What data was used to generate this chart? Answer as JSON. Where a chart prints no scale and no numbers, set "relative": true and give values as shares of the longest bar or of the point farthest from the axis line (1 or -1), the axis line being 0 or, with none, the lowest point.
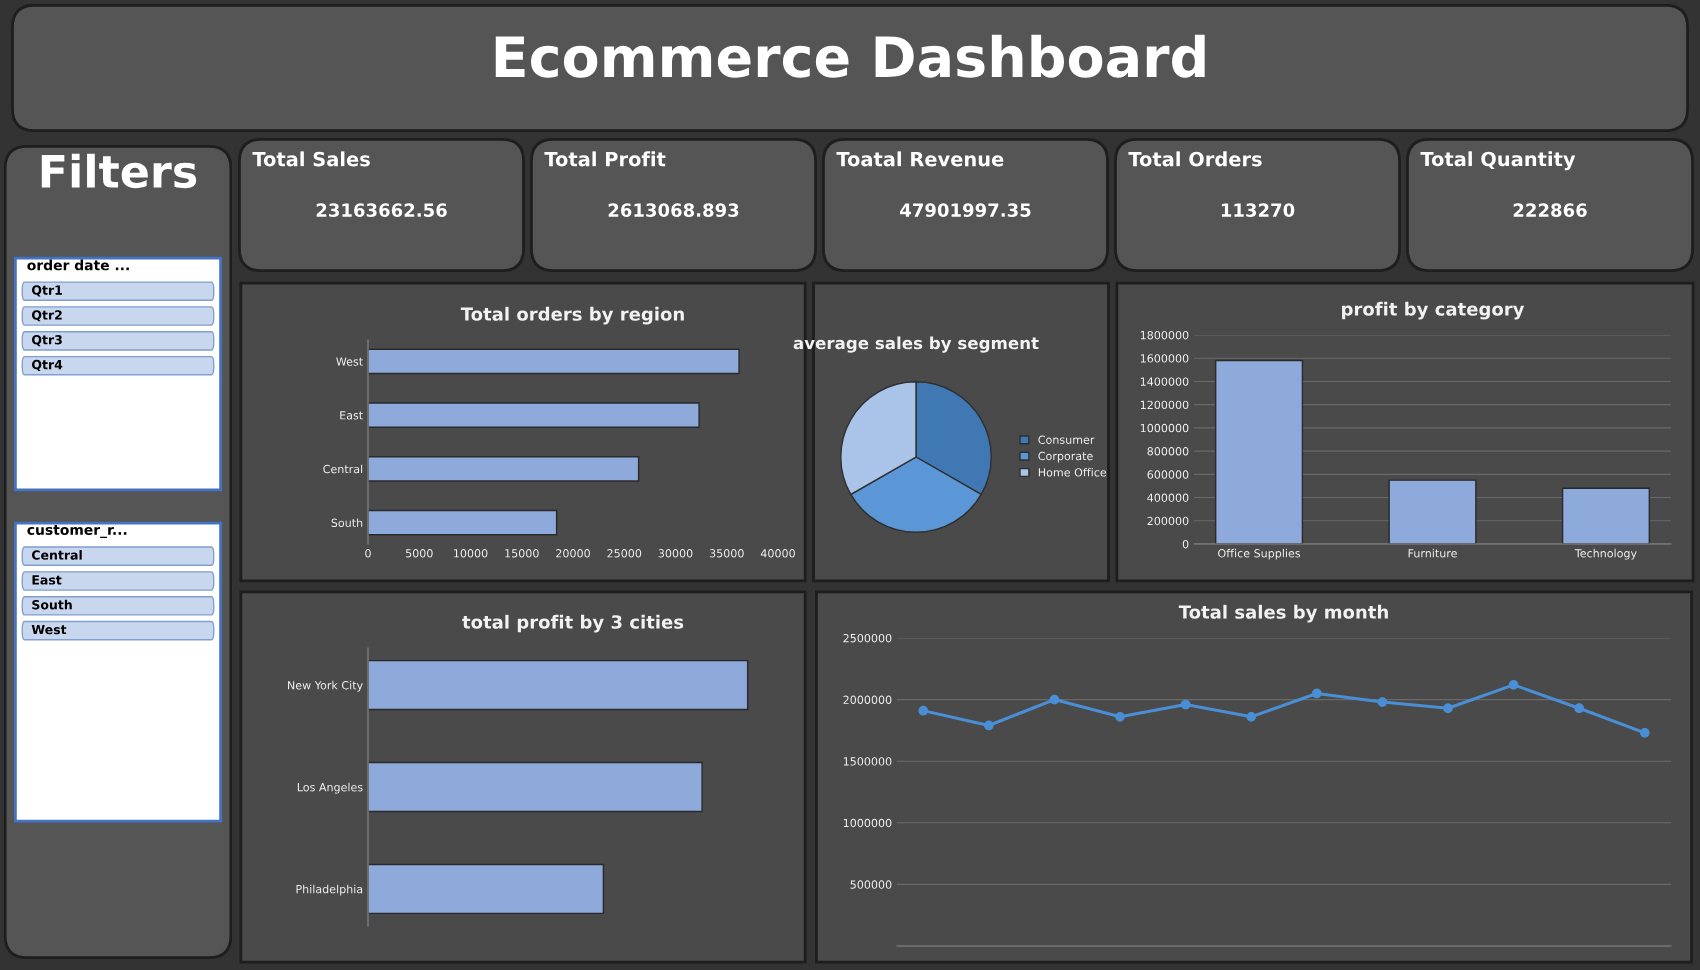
{
  "chart_data": [
    {
      "type": "other",
      "title": "Ecommerce Dashboard"
    },
    {
      "type": "other",
      "title": "Filters",
      "annotations": [
        "order date ...",
        "Qtr1",
        "Qtr2",
        "Qtr3",
        "Qtr4",
        "customer_r...",
        "Central",
        "East",
        "South",
        "West"
      ]
    },
    {
      "type": "other",
      "title": "Total Sales",
      "annotations": [
        "23163662.56"
      ]
    },
    {
      "type": "other",
      "title": "Total Profit",
      "annotations": [
        "2613068.893"
      ]
    },
    {
      "type": "other",
      "title": "Toatal Revenue",
      "annotations": [
        "47901997.35"
      ]
    },
    {
      "type": "other",
      "title": "Total Orders",
      "annotations": [
        "113270"
      ]
    },
    {
      "type": "other",
      "title": "Total Quantity",
      "annotations": [
        "222866"
      ]
    },
    {
      "type": "bar",
      "orientation": "horizontal",
      "title": "Total orders by region",
      "categories": [
        "West",
        "East",
        "Central",
        "South"
      ],
      "values": [
        36200,
        32300,
        26400,
        18400
      ],
      "color": "#8eaadb",
      "xlim": [
        0,
        40000
      ],
      "xticks": [
        0,
        5000,
        10000,
        15000,
        20000,
        25000,
        30000,
        35000,
        40000
      ]
    },
    {
      "type": "pie",
      "title": "average sales by segment",
      "categories": [
        "Consumer",
        "Corporate",
        "Home Office"
      ],
      "values": [
        33.3,
        33.4,
        33.3
      ],
      "colors": [
        "#3f78b3",
        "#5b96d6",
        "#a9c4e8"
      ],
      "legend": "right"
    },
    {
      "type": "bar",
      "title": "profit by category",
      "categories": [
        "Office Supplies",
        "Furniture",
        "Technology"
      ],
      "values": [
        1580000,
        550000,
        480000
      ],
      "color": "#8eaadb",
      "ylim": [
        0,
        1800000
      ],
      "yticks": [
        0,
        200000,
        400000,
        600000,
        800000,
        1000000,
        1200000,
        1400000,
        1600000,
        1800000
      ],
      "grid": "y"
    },
    {
      "type": "bar",
      "orientation": "horizontal",
      "relative": true,
      "title": "total profit by 3 cities",
      "categories": [
        "New York City",
        "Los Angeles",
        "Philadelphia"
      ],
      "values": [
        1,
        0.88,
        0.62
      ],
      "color": "#8eaadb"
    },
    {
      "type": "line",
      "title": "Total sales by month",
      "categories": [
        null,
        null,
        null,
        null,
        null,
        null,
        null,
        null,
        null,
        null,
        null,
        null
      ],
      "values": [
        1910000,
        1790000,
        2000000,
        1860000,
        1960000,
        1860000,
        2050000,
        1980000,
        1930000,
        2120000,
        1930000,
        1730000
      ],
      "color": "#4a8fd6",
      "marker": "circle",
      "ylim": [
        0,
        2500000
      ],
      "yticks": [
        500000,
        1000000,
        1500000,
        2000000,
        2500000
      ],
      "grid": "y"
    }
  ]
}
